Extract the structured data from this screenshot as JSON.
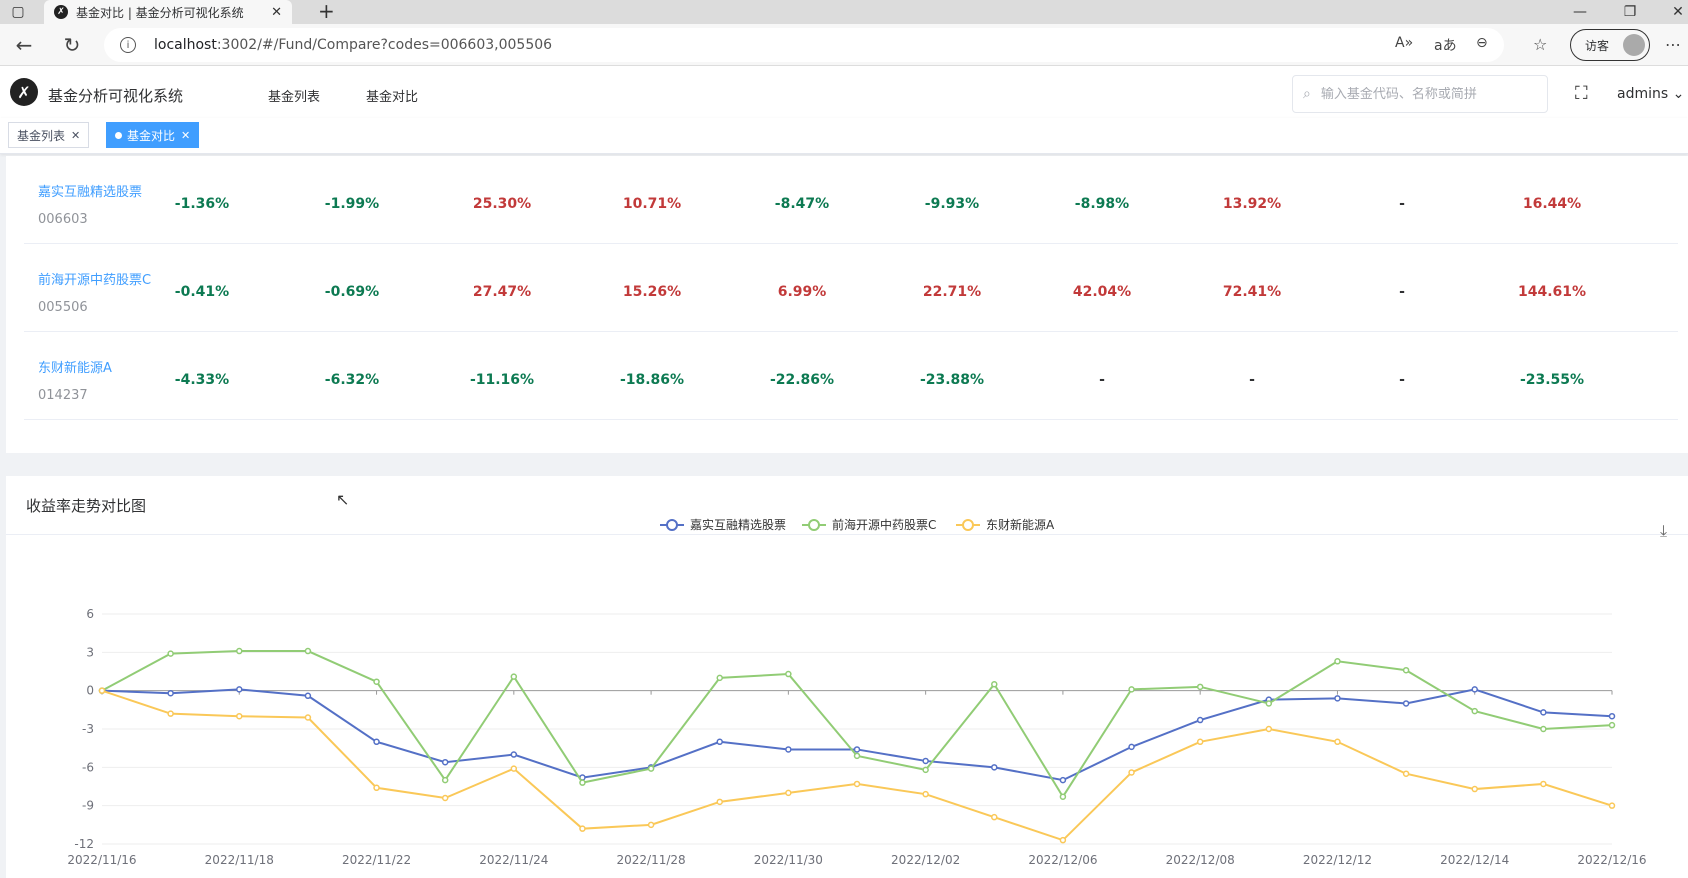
{
  "browser": {
    "tab_title": "基金对比 | 基金分析可视化系统",
    "url_host": "localhost",
    "url_path": ":3002/#/Fund/Compare?codes=006603,005506",
    "guest_label": "访客"
  },
  "header": {
    "app_name": "基金分析可视化系统",
    "nav": [
      "基金列表",
      "基金对比"
    ],
    "search_placeholder": "输入基金代码、名称或简拼",
    "user": "admins"
  },
  "tags": [
    {
      "label": "基金列表",
      "active": false
    },
    {
      "label": "基金对比",
      "active": true
    }
  ],
  "funds": [
    {
      "name": "嘉实互融精选股票",
      "code": "006603",
      "values": [
        "-1.36%",
        "-1.99%",
        "25.30%",
        "10.71%",
        "-8.47%",
        "-9.93%",
        "-8.98%",
        "13.92%",
        "-",
        "16.44%"
      ]
    },
    {
      "name": "前海开源中药股票C",
      "code": "005506",
      "values": [
        "-0.41%",
        "-0.69%",
        "27.47%",
        "15.26%",
        "6.99%",
        "22.71%",
        "42.04%",
        "72.41%",
        "-",
        "144.61%"
      ]
    },
    {
      "name": "东财新能源A",
      "code": "014237",
      "values": [
        "-4.33%",
        "-6.32%",
        "-11.16%",
        "-18.86%",
        "-22.86%",
        "-23.88%",
        "-",
        "-",
        "-",
        "-23.55%"
      ]
    }
  ],
  "chart": {
    "title": "收益率走势对比图"
  },
  "chart_data": {
    "type": "line",
    "ylim": [
      -12,
      6
    ],
    "yticks": [
      "6",
      "3",
      "0",
      "-3",
      "-6",
      "-9",
      "-12"
    ],
    "x_labels": [
      "2022/11/16",
      "2022/11/18",
      "2022/11/22",
      "2022/11/24",
      "2022/11/28",
      "2022/11/30",
      "2022/12/02",
      "2022/12/06",
      "2022/12/08",
      "2022/12/12",
      "2022/12/14",
      "2022/12/16"
    ],
    "legend_position": "top-center",
    "grid": true,
    "series": [
      {
        "name": "嘉实互融精选股票",
        "color": "#5470c6",
        "values": [
          0,
          -0.2,
          0.1,
          -0.4,
          -4,
          -5.6,
          -5,
          -6.8,
          -6,
          -4,
          -4.6,
          -4.6,
          -5.5,
          -6,
          -7,
          -4.4,
          -2.3,
          -0.7,
          -0.6,
          -1,
          0.1,
          -1.7,
          -2
        ]
      },
      {
        "name": "前海开源中药股票C",
        "color": "#91cc75",
        "values": [
          0,
          2.9,
          3.1,
          3.1,
          0.7,
          -7,
          1.1,
          -7.2,
          -6.1,
          1,
          1.3,
          -5.1,
          -6.2,
          0.5,
          -8.3,
          0.1,
          0.3,
          -1,
          2.3,
          1.6,
          -1.6,
          -3,
          -2.7
        ]
      },
      {
        "name": "东财新能源A",
        "color": "#fac858",
        "values": [
          0,
          -1.8,
          -2,
          -2.1,
          -7.6,
          -8.4,
          -6.1,
          -10.8,
          -10.5,
          -8.7,
          -8,
          -7.3,
          -8.1,
          -9.9,
          -11.7,
          -6.4,
          -4,
          -3,
          -4,
          -6.5,
          -7.7,
          -7.3,
          -9
        ]
      }
    ]
  }
}
